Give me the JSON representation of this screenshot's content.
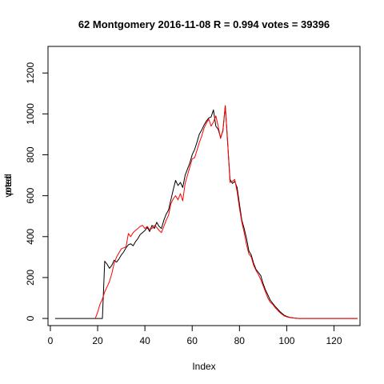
{
  "chart_data": {
    "type": "line",
    "title": "62 Montgomery 2016-11-08 R = 0.994 votes = 39396",
    "xlabel": "Index",
    "ylabel_overlap": [
      "voted",
      "pred"
    ],
    "xlim": [
      -1,
      131
    ],
    "ylim": [
      -35,
      1330
    ],
    "x_ticks": [
      0,
      20,
      40,
      60,
      80,
      100,
      120
    ],
    "y_ticks": [
      0,
      200,
      400,
      600,
      800,
      1000,
      1200
    ],
    "grid": false,
    "series": [
      {
        "color": "#000000",
        "points": [
          [
            2,
            0
          ],
          [
            20,
            0
          ],
          [
            21,
            0
          ],
          [
            22,
            0
          ],
          [
            23,
            280
          ],
          [
            24,
            265
          ],
          [
            25,
            245
          ],
          [
            26,
            260
          ],
          [
            27,
            285
          ],
          [
            28,
            275
          ],
          [
            29,
            290
          ],
          [
            30,
            310
          ],
          [
            31,
            325
          ],
          [
            32,
            345
          ],
          [
            33,
            360
          ],
          [
            34,
            365
          ],
          [
            35,
            355
          ],
          [
            36,
            375
          ],
          [
            37,
            390
          ],
          [
            38,
            410
          ],
          [
            39,
            420
          ],
          [
            40,
            430
          ],
          [
            41,
            445
          ],
          [
            42,
            425
          ],
          [
            43,
            455
          ],
          [
            44,
            440
          ],
          [
            45,
            470
          ],
          [
            46,
            450
          ],
          [
            47,
            440
          ],
          [
            48,
            480
          ],
          [
            49,
            510
          ],
          [
            50,
            530
          ],
          [
            51,
            580
          ],
          [
            52,
            630
          ],
          [
            53,
            675
          ],
          [
            54,
            650
          ],
          [
            55,
            665
          ],
          [
            56,
            640
          ],
          [
            57,
            700
          ],
          [
            58,
            730
          ],
          [
            59,
            760
          ],
          [
            60,
            800
          ],
          [
            61,
            825
          ],
          [
            62,
            860
          ],
          [
            63,
            900
          ],
          [
            64,
            920
          ],
          [
            65,
            945
          ],
          [
            66,
            965
          ],
          [
            67,
            980
          ],
          [
            68,
            985
          ],
          [
            69,
            1020
          ],
          [
            70,
            940
          ],
          [
            71,
            925
          ],
          [
            72,
            885
          ],
          [
            73,
            915
          ],
          [
            74,
            1040
          ],
          [
            75,
            860
          ],
          [
            76,
            680
          ],
          [
            77,
            660
          ],
          [
            78,
            670
          ],
          [
            79,
            640
          ],
          [
            80,
            560
          ],
          [
            81,
            480
          ],
          [
            82,
            440
          ],
          [
            83,
            390
          ],
          [
            84,
            330
          ],
          [
            85,
            310
          ],
          [
            86,
            270
          ],
          [
            87,
            240
          ],
          [
            88,
            225
          ],
          [
            89,
            210
          ],
          [
            90,
            170
          ],
          [
            91,
            140
          ],
          [
            92,
            115
          ],
          [
            93,
            90
          ],
          [
            94,
            75
          ],
          [
            95,
            60
          ],
          [
            96,
            48
          ],
          [
            97,
            35
          ],
          [
            98,
            25
          ],
          [
            99,
            15
          ],
          [
            100,
            10
          ],
          [
            101,
            6
          ],
          [
            102,
            4
          ],
          [
            103,
            2
          ],
          [
            104,
            1
          ],
          [
            105,
            0
          ],
          [
            110,
            0
          ],
          [
            120,
            0
          ],
          [
            130,
            0
          ]
        ]
      },
      {
        "color": "#ff0000",
        "points": [
          [
            19,
            0
          ],
          [
            20,
            30
          ],
          [
            21,
            70
          ],
          [
            22,
            95
          ],
          [
            23,
            130
          ],
          [
            24,
            155
          ],
          [
            25,
            180
          ],
          [
            26,
            220
          ],
          [
            27,
            270
          ],
          [
            28,
            300
          ],
          [
            29,
            320
          ],
          [
            30,
            340
          ],
          [
            31,
            345
          ],
          [
            32,
            350
          ],
          [
            33,
            415
          ],
          [
            34,
            400
          ],
          [
            35,
            420
          ],
          [
            36,
            430
          ],
          [
            37,
            440
          ],
          [
            38,
            450
          ],
          [
            39,
            455
          ],
          [
            40,
            440
          ],
          [
            41,
            450
          ],
          [
            42,
            435
          ],
          [
            43,
            440
          ],
          [
            44,
            455
          ],
          [
            45,
            445
          ],
          [
            46,
            430
          ],
          [
            47,
            420
          ],
          [
            48,
            450
          ],
          [
            49,
            480
          ],
          [
            50,
            505
          ],
          [
            51,
            560
          ],
          [
            52,
            585
          ],
          [
            53,
            600
          ],
          [
            54,
            580
          ],
          [
            55,
            610
          ],
          [
            56,
            575
          ],
          [
            57,
            660
          ],
          [
            58,
            700
          ],
          [
            59,
            740
          ],
          [
            60,
            780
          ],
          [
            61,
            785
          ],
          [
            62,
            820
          ],
          [
            63,
            860
          ],
          [
            64,
            890
          ],
          [
            65,
            930
          ],
          [
            66,
            955
          ],
          [
            67,
            975
          ],
          [
            68,
            940
          ],
          [
            69,
            960
          ],
          [
            70,
            990
          ],
          [
            71,
            940
          ],
          [
            72,
            880
          ],
          [
            73,
            920
          ],
          [
            74,
            1040
          ],
          [
            75,
            870
          ],
          [
            76,
            665
          ],
          [
            77,
            670
          ],
          [
            78,
            680
          ],
          [
            79,
            620
          ],
          [
            80,
            540
          ],
          [
            81,
            470
          ],
          [
            82,
            420
          ],
          [
            83,
            360
          ],
          [
            84,
            315
          ],
          [
            85,
            300
          ],
          [
            86,
            260
          ],
          [
            87,
            235
          ],
          [
            88,
            215
          ],
          [
            89,
            190
          ],
          [
            90,
            160
          ],
          [
            91,
            130
          ],
          [
            92,
            100
          ],
          [
            93,
            80
          ],
          [
            94,
            70
          ],
          [
            95,
            55
          ],
          [
            96,
            42
          ],
          [
            97,
            30
          ],
          [
            98,
            20
          ],
          [
            99,
            12
          ],
          [
            100,
            8
          ],
          [
            101,
            5
          ],
          [
            102,
            3
          ],
          [
            103,
            2
          ],
          [
            104,
            1
          ],
          [
            105,
            0
          ],
          [
            110,
            0
          ],
          [
            120,
            0
          ],
          [
            130,
            0
          ]
        ]
      }
    ]
  }
}
